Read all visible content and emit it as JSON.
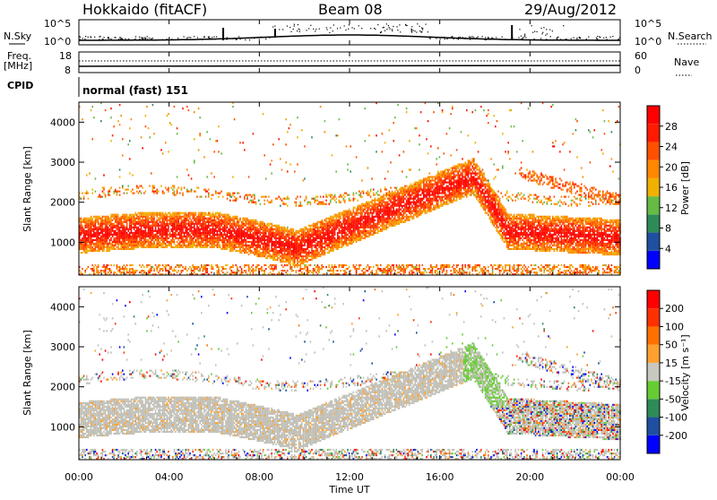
{
  "header": {
    "station": "Hokkaido (fitACF)",
    "beam": "Beam 08",
    "date": "29/Aug/2012"
  },
  "side_labels": {
    "nsky": "N.Sky",
    "freq": "Freq.",
    "mhz": "[MHz]",
    "cpid": "CPID",
    "nsearch": "N.Search",
    "nave": "Nave"
  },
  "cpid_text": "normal (fast) 151",
  "colors": {
    "power_scale": [
      "#0000ff",
      "#1f4fa0",
      "#2e8b57",
      "#66bb44",
      "#f0b000",
      "#ff8800",
      "#ff5000",
      "#ff1a00",
      "#ff0000"
    ],
    "velocity_scale": [
      "#ff0000",
      "#ff3000",
      "#ff7000",
      "#ffa030",
      "#c8c8c0",
      "#66cc33",
      "#2e8b57",
      "#1f4fa0",
      "#0000ff"
    ],
    "ground_scatter": "#c0c0b8"
  },
  "chart_data": [
    {
      "type": "line",
      "name": "N.Sky / N.Search",
      "x_axis_hours": [
        0,
        24
      ],
      "yticks_left": [
        "10^5",
        "10^0"
      ],
      "yticks_right": [
        "10^5",
        "10^0"
      ]
    },
    {
      "type": "line",
      "name": "Freq / Nave",
      "yticks_left": [
        "18",
        "8"
      ],
      "yticks_right": [
        "60",
        "0"
      ]
    },
    {
      "type": "heatmap",
      "name": "Power",
      "ylabel": "Slant Range [km]",
      "yticks": [
        "1000",
        "2000",
        "3000",
        "4000"
      ],
      "ylim": [
        180,
        4500
      ],
      "colorbar_label": "Power [dB]",
      "colorbar_ticks": [
        "4",
        "8",
        "12",
        "16",
        "20",
        "24",
        "28"
      ]
    },
    {
      "type": "heatmap",
      "name": "Velocity",
      "ylabel": "Slant Range [km]",
      "yticks": [
        "1000",
        "2000",
        "3000",
        "4000"
      ],
      "ylim": [
        180,
        4500
      ],
      "colorbar_label": "Velocity [m s⁻¹]",
      "colorbar_ticks": [
        "200",
        "100",
        "50",
        "15",
        "-15",
        "-50",
        "-100",
        "-200"
      ],
      "xlabel": "Time UT",
      "xticks": [
        "00:00",
        "04:00",
        "08:00",
        "12:00",
        "16:00",
        "20:00",
        "00:00"
      ]
    }
  ]
}
